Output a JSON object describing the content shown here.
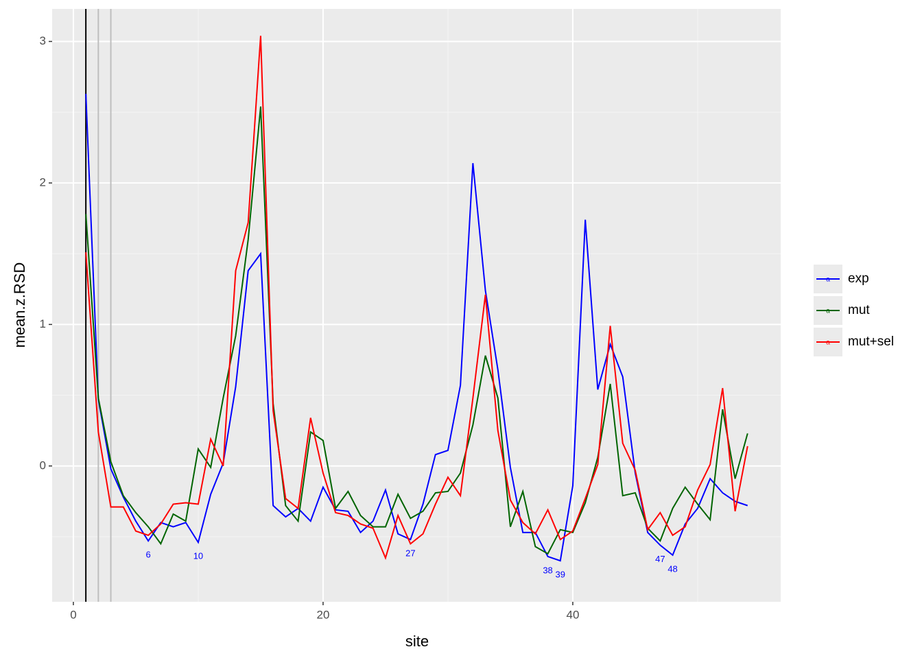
{
  "chart_data": {
    "type": "line",
    "x_label": "site",
    "y_label": "mean.z.RSD",
    "x": [
      1,
      2,
      3,
      4,
      5,
      6,
      7,
      8,
      9,
      10,
      11,
      12,
      13,
      14,
      15,
      16,
      17,
      18,
      19,
      20,
      21,
      22,
      23,
      24,
      25,
      26,
      27,
      28,
      29,
      30,
      31,
      32,
      33,
      34,
      35,
      36,
      37,
      38,
      39,
      40,
      41,
      42,
      43,
      44,
      45,
      46,
      47,
      48,
      49,
      50,
      51,
      52,
      53,
      54
    ],
    "series": [
      {
        "name": "exp",
        "color": "#0000ff",
        "values": [
          2.63,
          0.47,
          -0.02,
          -0.22,
          -0.39,
          -0.53,
          -0.4,
          -0.43,
          -0.4,
          -0.54,
          -0.2,
          0.02,
          0.56,
          1.38,
          1.5,
          -0.28,
          -0.36,
          -0.3,
          -0.39,
          -0.15,
          -0.31,
          -0.32,
          -0.47,
          -0.39,
          -0.17,
          -0.48,
          -0.52,
          -0.27,
          0.08,
          0.11,
          0.57,
          2.14,
          1.24,
          0.68,
          -0.01,
          -0.47,
          -0.47,
          -0.64,
          -0.67,
          -0.14,
          1.74,
          0.54,
          0.86,
          0.63,
          -0.05,
          -0.47,
          -0.56,
          -0.63,
          -0.41,
          -0.3,
          -0.09,
          -0.19,
          -0.25,
          -0.28
        ]
      },
      {
        "name": "mut",
        "color": "#006400",
        "values": [
          1.78,
          0.48,
          0.03,
          -0.21,
          -0.33,
          -0.43,
          -0.55,
          -0.34,
          -0.39,
          0.12,
          -0.01,
          0.48,
          0.92,
          1.6,
          2.54,
          0.44,
          -0.28,
          -0.39,
          0.24,
          0.18,
          -0.3,
          -0.18,
          -0.35,
          -0.43,
          -0.43,
          -0.2,
          -0.37,
          -0.32,
          -0.19,
          -0.18,
          -0.05,
          0.29,
          0.78,
          0.48,
          -0.43,
          -0.18,
          -0.57,
          -0.62,
          -0.45,
          -0.47,
          -0.26,
          0.06,
          0.58,
          -0.21,
          -0.19,
          -0.44,
          -0.53,
          -0.3,
          -0.15,
          -0.27,
          -0.38,
          0.4,
          -0.09,
          0.23
        ]
      },
      {
        "name": "mut+sel",
        "color": "#ff0000",
        "values": [
          1.51,
          0.24,
          -0.29,
          -0.29,
          -0.46,
          -0.49,
          -0.41,
          -0.27,
          -0.26,
          -0.27,
          0.19,
          0.0,
          1.38,
          1.72,
          3.04,
          0.39,
          -0.23,
          -0.3,
          0.34,
          -0.05,
          -0.33,
          -0.35,
          -0.41,
          -0.44,
          -0.65,
          -0.35,
          -0.55,
          -0.48,
          -0.27,
          -0.08,
          -0.21,
          0.48,
          1.21,
          0.25,
          -0.24,
          -0.4,
          -0.48,
          -0.31,
          -0.52,
          -0.46,
          -0.23,
          0.01,
          0.99,
          0.16,
          -0.03,
          -0.45,
          -0.33,
          -0.49,
          -0.43,
          -0.17,
          0.01,
          0.55,
          -0.32,
          0.14
        ]
      }
    ],
    "labeled_sites": [
      6,
      10,
      27,
      38,
      39,
      47,
      48
    ],
    "label_color": "#0000ff",
    "vlines": [
      {
        "x": 1,
        "color": "#000000"
      },
      {
        "x": 2,
        "color": "#bebebe"
      },
      {
        "x": 3,
        "color": "#bebebe"
      }
    ],
    "xlim": [
      -1.7,
      56.65
    ],
    "ylim": [
      -0.96,
      3.23
    ],
    "xticks": [
      0,
      20,
      40
    ],
    "yticks": [
      0,
      1,
      2,
      3
    ],
    "xminor": [
      10,
      30,
      50
    ],
    "yminor": [
      -0.5,
      0.5,
      1.5,
      2.5
    ],
    "grid": true,
    "legend": "right"
  }
}
